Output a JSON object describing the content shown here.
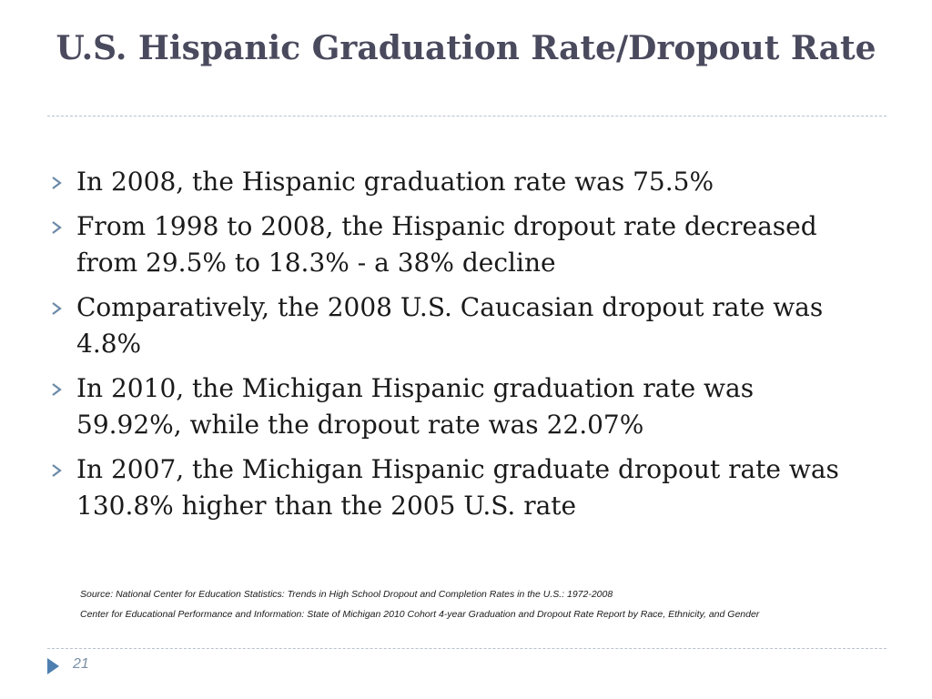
{
  "slide": {
    "title": "U.S. Hispanic Graduation Rate/Dropout Rate",
    "bullets": [
      "In 2008, the Hispanic graduation rate was 75.5%",
      "From 1998 to 2008, the Hispanic dropout rate decreased from 29.5% to 18.3% - a 38% decline",
      "Comparatively, the 2008 U.S. Caucasian dropout rate was 4.8%",
      "In 2010, the Michigan Hispanic graduation rate was 59.92%, while the dropout rate was 22.07%",
      "In 2007, the Michigan Hispanic graduate dropout rate was 130.8% higher than the 2005 U.S. rate"
    ],
    "sources": [
      "Source: National Center for Education Statistics: Trends in High School Dropout and Completion Rates in the U.S.: 1972-2008",
      "Center for Educational Performance and Information: State of Michigan 2010 Cohort 4-year Graduation and Dropout Rate Report by Race, Ethnicity, and Gender"
    ],
    "page_number": "21"
  },
  "icons": {
    "bullet": "arrowhead-bullet-icon",
    "footer": "triangle-arrow-icon"
  },
  "colors": {
    "title": "#4a4a5e",
    "body_text": "#1a1a1a",
    "bullet_icon": "#6b8aa8",
    "footer_arrow": "#4f7fb0",
    "page_number": "#7a8fa6",
    "rule": "#b9c1cc"
  }
}
